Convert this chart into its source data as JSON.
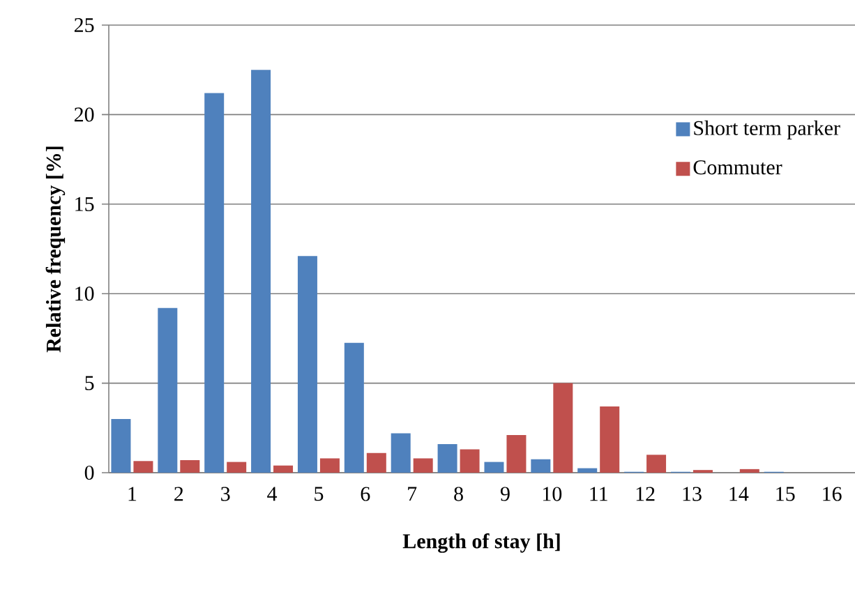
{
  "chart_data": {
    "type": "bar",
    "xlabel": "Length of stay [h]",
    "ylabel": "Relative frequency [%]",
    "categories": [
      "1",
      "2",
      "3",
      "4",
      "5",
      "6",
      "7",
      "8",
      "9",
      "10",
      "11",
      "12",
      "13",
      "14",
      "15",
      "16"
    ],
    "series": [
      {
        "name": "Short term parker",
        "color": "#4f81bd",
        "values": [
          3.0,
          9.2,
          21.2,
          22.5,
          12.1,
          7.25,
          2.2,
          1.6,
          0.6,
          0.75,
          0.25,
          0.05,
          0.05,
          0,
          0.05,
          0
        ]
      },
      {
        "name": "Commuter",
        "color": "#c0504d",
        "values": [
          0.65,
          0.7,
          0.6,
          0.4,
          0.8,
          1.1,
          0.8,
          1.3,
          2.1,
          5.0,
          3.7,
          1.0,
          0.15,
          0.2,
          0,
          0
        ]
      }
    ],
    "ylim": [
      0,
      25
    ],
    "yticks": [
      0,
      5,
      10,
      15,
      20,
      25
    ],
    "grid": "y",
    "legend": "right"
  }
}
